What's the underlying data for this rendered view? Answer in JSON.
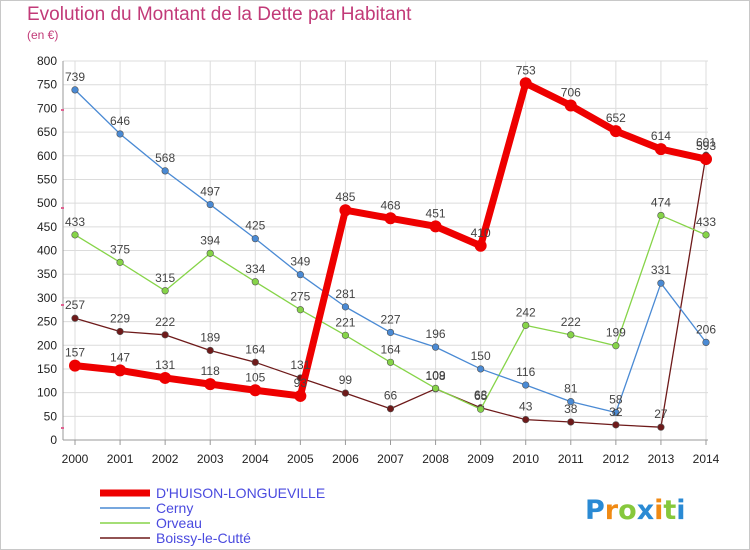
{
  "chart_data": {
    "type": "line",
    "title": "Evolution du Montant de la Dette par Habitant",
    "subtitle": "(en €)",
    "x": [
      "2000",
      "2001",
      "2002",
      "2003",
      "2004",
      "2005",
      "2006",
      "2007",
      "2008",
      "2009",
      "2010",
      "2011",
      "2012",
      "2013",
      "2014"
    ],
    "ylim": [
      0,
      800
    ],
    "yticks": [
      0,
      50,
      100,
      150,
      200,
      250,
      300,
      350,
      400,
      450,
      500,
      550,
      600,
      650,
      700,
      750,
      800
    ],
    "grid": true,
    "legend_position": "bottom-left",
    "series": [
      {
        "name": "D'HUISON-LONGUEVILLE",
        "color": "#ee0000",
        "values": [
          157,
          147,
          131,
          118,
          105,
          93,
          485,
          468,
          451,
          410,
          753,
          706,
          652,
          614,
          593
        ]
      },
      {
        "name": "Cerny",
        "color": "#4a8ad4",
        "values": [
          739,
          646,
          568,
          497,
          425,
          349,
          281,
          227,
          196,
          150,
          116,
          81,
          58,
          331,
          206
        ]
      },
      {
        "name": "Orveau",
        "color": "#86d448",
        "values": [
          433,
          375,
          315,
          394,
          334,
          275,
          221,
          164,
          109,
          65,
          242,
          222,
          199,
          474,
          433
        ]
      },
      {
        "name": "Boissy-le-Cutté",
        "color": "#6e1a1a",
        "values": [
          257,
          229,
          222,
          189,
          164,
          131,
          99,
          66,
          108,
          68,
          43,
          38,
          32,
          27,
          601
        ]
      }
    ]
  },
  "brand": {
    "letters": [
      "P",
      "r",
      "o",
      "x",
      "i",
      "t",
      "i"
    ],
    "colors": [
      "#2a8ad4",
      "#f08a14",
      "#86c83c",
      "#2a8ad4",
      "#f08a14",
      "#86c83c",
      "#2a8ad4"
    ]
  }
}
